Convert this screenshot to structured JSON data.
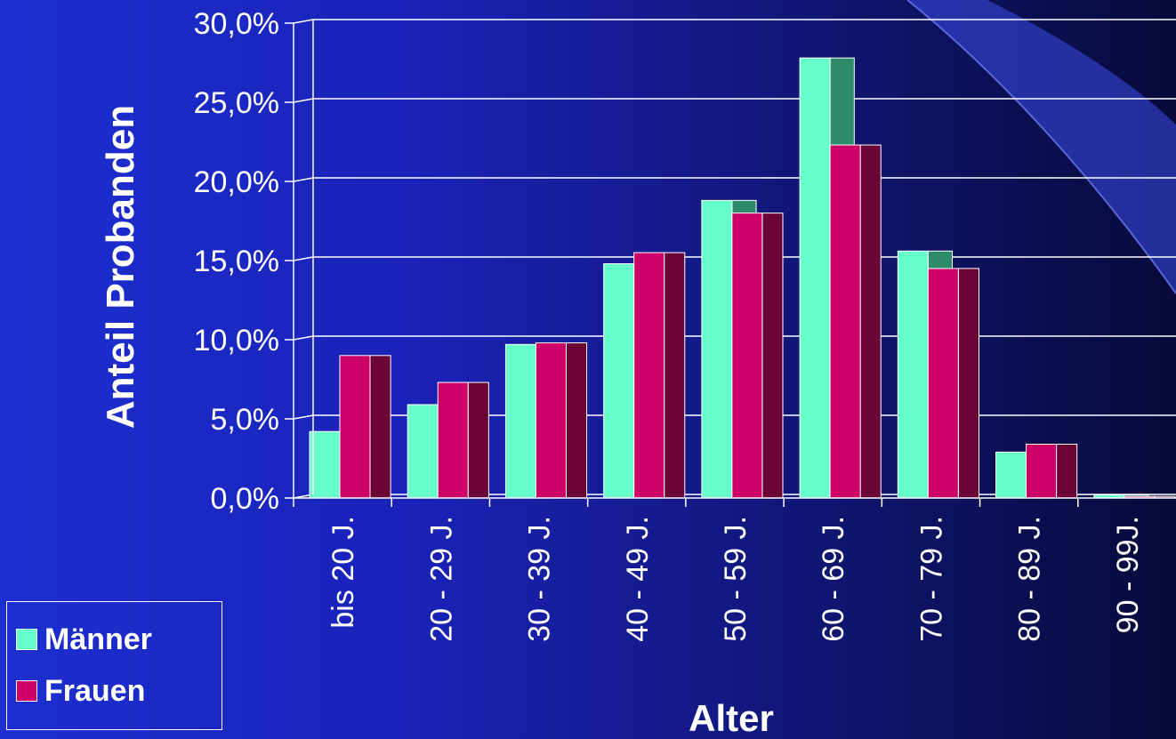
{
  "chart_data": {
    "type": "bar",
    "ylabel": "Anteil Probanden",
    "xlabel": "Alter",
    "ylim": [
      0,
      30
    ],
    "yticks": [
      "0,0%",
      "5,0%",
      "10,0%",
      "15,0%",
      "20,0%",
      "25,0%",
      "30,0%"
    ],
    "grid": true,
    "legend_position": "bottom-left",
    "categories": [
      "bis 20 J.",
      "20 - 29 J.",
      "30 - 39 J.",
      "40 - 49 J.",
      "50 - 59 J.",
      "60 - 69 J.",
      "70 - 79 J.",
      "80 - 89 J.",
      "90 - 99J."
    ],
    "series": [
      {
        "name": "Männer",
        "color": "#66ffcc",
        "values": [
          4.2,
          5.9,
          9.7,
          14.8,
          18.8,
          27.8,
          15.6,
          2.9,
          0.2
        ]
      },
      {
        "name": "Frauen",
        "color": "#cc0066",
        "values": [
          9.0,
          7.3,
          9.8,
          15.5,
          18.0,
          22.3,
          14.5,
          3.4,
          0.1
        ]
      }
    ]
  }
}
